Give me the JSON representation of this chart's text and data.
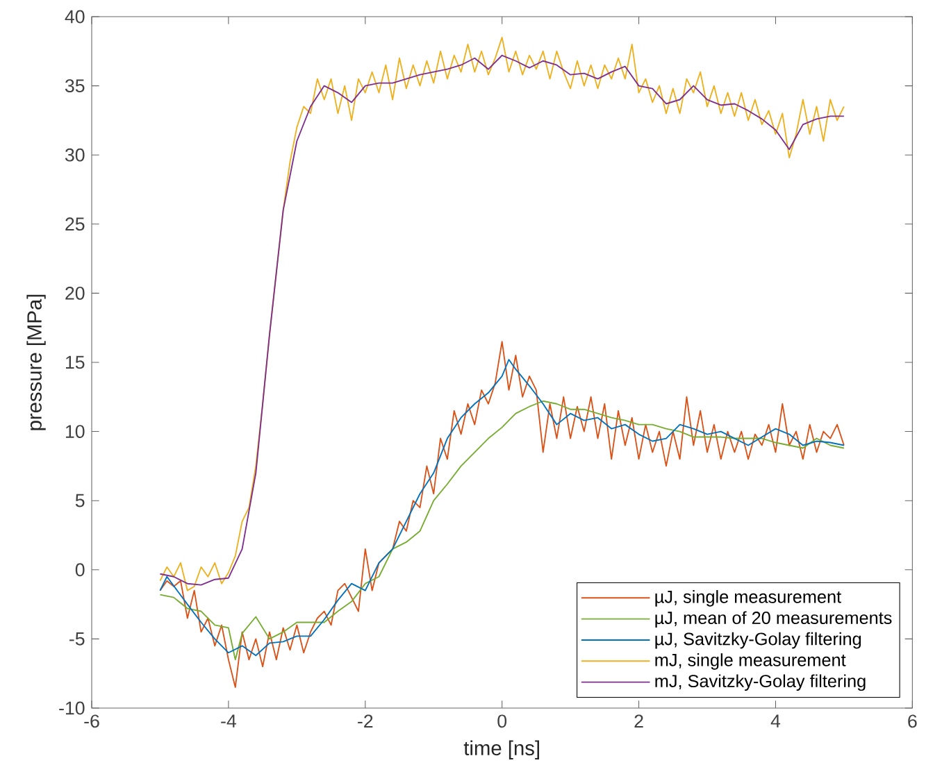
{
  "chart_data": {
    "type": "line",
    "xlabel": "time [ns]",
    "ylabel": "pressure [MPa]",
    "xlim": [
      -6,
      6
    ],
    "ylim": [
      -10,
      40
    ],
    "xticks": [
      -6,
      -4,
      -2,
      0,
      2,
      4,
      6
    ],
    "yticks": [
      -10,
      -5,
      0,
      5,
      10,
      15,
      20,
      25,
      30,
      35,
      40
    ],
    "grid": false,
    "legend": "bottom right",
    "marker": "none",
    "line_style": "solid",
    "series": [
      {
        "name": "µJ, single measurement",
        "color": "#d95319",
        "x": [
          -5.0,
          -4.9,
          -4.8,
          -4.7,
          -4.6,
          -4.5,
          -4.4,
          -4.3,
          -4.2,
          -4.1,
          -4.0,
          -3.9,
          -3.8,
          -3.7,
          -3.6,
          -3.5,
          -3.4,
          -3.3,
          -3.2,
          -3.1,
          -3.0,
          -2.9,
          -2.8,
          -2.7,
          -2.6,
          -2.5,
          -2.4,
          -2.3,
          -2.2,
          -2.1,
          -2.0,
          -1.9,
          -1.8,
          -1.7,
          -1.6,
          -1.5,
          -1.4,
          -1.3,
          -1.2,
          -1.1,
          -1.0,
          -0.9,
          -0.8,
          -0.7,
          -0.6,
          -0.5,
          -0.4,
          -0.3,
          -0.2,
          -0.1,
          0.0,
          0.1,
          0.2,
          0.3,
          0.4,
          0.5,
          0.6,
          0.7,
          0.8,
          0.9,
          1.0,
          1.1,
          1.2,
          1.3,
          1.4,
          1.5,
          1.6,
          1.7,
          1.8,
          1.9,
          2.0,
          2.1,
          2.2,
          2.3,
          2.4,
          2.5,
          2.6,
          2.7,
          2.8,
          2.9,
          3.0,
          3.1,
          3.2,
          3.3,
          3.4,
          3.5,
          3.6,
          3.7,
          3.8,
          3.9,
          4.0,
          4.1,
          4.2,
          4.3,
          4.4,
          4.5,
          4.6,
          4.7,
          4.8,
          4.9,
          5.0
        ],
        "values": [
          -1.5,
          -0.8,
          -1.2,
          -0.8,
          -3.5,
          -1.5,
          -4.5,
          -3.5,
          -5.5,
          -4.0,
          -6.5,
          -8.5,
          -4.5,
          -6.5,
          -5.0,
          -7.0,
          -4.5,
          -6.5,
          -4.2,
          -5.8,
          -4.0,
          -6.0,
          -4.5,
          -3.5,
          -3.0,
          -4.0,
          -1.5,
          -1.0,
          -2.0,
          -3.0,
          1.5,
          -1.5,
          0.5,
          1.0,
          1.5,
          3.5,
          2.8,
          5.0,
          4.5,
          7.5,
          5.5,
          9.5,
          8.0,
          11.5,
          9.8,
          12.0,
          10.5,
          13.0,
          12.0,
          13.5,
          16.5,
          13.0,
          15.5,
          12.5,
          14.0,
          13.0,
          8.5,
          12.0,
          9.5,
          12.5,
          9.5,
          11.8,
          10.0,
          12.5,
          9.5,
          12.0,
          8.0,
          11.5,
          9.0,
          11.0,
          8.0,
          10.5,
          8.5,
          10.0,
          7.5,
          10.0,
          8.0,
          12.5,
          9.0,
          11.5,
          8.5,
          10.5,
          8.0,
          10.0,
          8.5,
          10.0,
          8.0,
          9.8,
          9.0,
          10.5,
          8.5,
          12.0,
          9.0,
          10.0,
          8.0,
          10.5,
          8.5,
          10.0,
          9.5,
          10.5,
          9.0
        ]
      },
      {
        "name": "µJ, mean of 20 measurements",
        "color": "#77ac30",
        "x": [
          -5.0,
          -4.8,
          -4.6,
          -4.4,
          -4.2,
          -4.0,
          -3.9,
          -3.8,
          -3.6,
          -3.4,
          -3.2,
          -3.0,
          -2.8,
          -2.6,
          -2.4,
          -2.2,
          -2.0,
          -1.8,
          -1.6,
          -1.4,
          -1.2,
          -1.0,
          -0.8,
          -0.6,
          -0.4,
          -0.2,
          0.0,
          0.2,
          0.4,
          0.6,
          0.8,
          1.0,
          1.2,
          1.4,
          1.6,
          1.8,
          2.0,
          2.2,
          2.4,
          2.6,
          2.8,
          3.0,
          3.2,
          3.4,
          3.6,
          3.8,
          4.0,
          4.2,
          4.4,
          4.6,
          4.8,
          5.0
        ],
        "values": [
          -1.8,
          -2.0,
          -2.8,
          -3.0,
          -4.0,
          -4.2,
          -6.5,
          -4.6,
          -3.4,
          -5.0,
          -4.5,
          -3.8,
          -3.8,
          -3.8,
          -3.0,
          -2.3,
          -1.0,
          -0.5,
          1.5,
          2.0,
          2.8,
          5.0,
          6.2,
          7.5,
          8.5,
          9.5,
          10.3,
          11.3,
          11.8,
          12.2,
          12.0,
          11.6,
          11.6,
          11.3,
          11.0,
          10.8,
          10.5,
          10.5,
          10.2,
          10.0,
          9.6,
          9.6,
          9.6,
          9.5,
          9.5,
          9.5,
          9.2,
          9.0,
          8.8,
          9.5,
          9.0,
          8.8
        ]
      },
      {
        "name": "µJ, Savitzky-Golay filtering",
        "color": "#0072bd",
        "x": [
          -5.0,
          -4.9,
          -4.6,
          -4.4,
          -4.2,
          -4.0,
          -3.8,
          -3.6,
          -3.4,
          -3.2,
          -3.0,
          -2.8,
          -2.6,
          -2.4,
          -2.2,
          -2.0,
          -1.8,
          -1.6,
          -1.4,
          -1.2,
          -1.0,
          -0.8,
          -0.6,
          -0.4,
          -0.2,
          0.0,
          0.1,
          0.2,
          0.4,
          0.6,
          0.8,
          1.0,
          1.2,
          1.4,
          1.6,
          1.8,
          2.0,
          2.2,
          2.4,
          2.6,
          2.8,
          3.0,
          3.2,
          3.4,
          3.6,
          3.8,
          4.0,
          4.2,
          4.4,
          4.6,
          4.8,
          5.0
        ],
        "values": [
          -1.5,
          -0.5,
          -2.5,
          -3.8,
          -5.0,
          -6.0,
          -5.5,
          -6.2,
          -5.3,
          -5.2,
          -4.8,
          -4.8,
          -3.6,
          -2.2,
          -1.0,
          -1.5,
          0.5,
          1.5,
          3.5,
          5.5,
          7.0,
          9.5,
          11.0,
          12.0,
          12.8,
          14.0,
          15.2,
          14.5,
          13.3,
          12.0,
          10.5,
          11.3,
          10.8,
          11.0,
          10.2,
          10.5,
          9.8,
          9.3,
          9.5,
          10.5,
          10.2,
          9.8,
          10.0,
          9.5,
          9.0,
          9.6,
          10.2,
          9.8,
          9.0,
          9.3,
          9.2,
          9.0
        ]
      },
      {
        "name": "mJ, single measurement",
        "color": "#edb120",
        "x": [
          -5.0,
          -4.9,
          -4.8,
          -4.7,
          -4.6,
          -4.5,
          -4.4,
          -4.3,
          -4.2,
          -4.1,
          -4.0,
          -3.9,
          -3.8,
          -3.7,
          -3.6,
          -3.5,
          -3.4,
          -3.3,
          -3.2,
          -3.1,
          -3.0,
          -2.9,
          -2.8,
          -2.7,
          -2.6,
          -2.5,
          -2.4,
          -2.3,
          -2.2,
          -2.1,
          -2.0,
          -1.9,
          -1.8,
          -1.7,
          -1.6,
          -1.5,
          -1.4,
          -1.3,
          -1.2,
          -1.1,
          -1.0,
          -0.9,
          -0.8,
          -0.7,
          -0.6,
          -0.5,
          -0.4,
          -0.3,
          -0.2,
          -0.1,
          0.0,
          0.1,
          0.2,
          0.3,
          0.4,
          0.5,
          0.6,
          0.7,
          0.8,
          0.9,
          1.0,
          1.1,
          1.2,
          1.3,
          1.4,
          1.5,
          1.6,
          1.7,
          1.8,
          1.9,
          2.0,
          2.1,
          2.2,
          2.3,
          2.4,
          2.5,
          2.6,
          2.7,
          2.8,
          2.9,
          3.0,
          3.1,
          3.2,
          3.3,
          3.4,
          3.5,
          3.6,
          3.7,
          3.8,
          3.9,
          4.0,
          4.1,
          4.2,
          4.3,
          4.4,
          4.5,
          4.6,
          4.7,
          4.8,
          4.9,
          5.0
        ],
        "values": [
          -0.8,
          0.2,
          -0.5,
          0.5,
          -1.5,
          -1.2,
          0.2,
          -0.5,
          0.5,
          -1.0,
          -0.2,
          1.0,
          3.5,
          4.5,
          7.5,
          12,
          17,
          21.5,
          26,
          29.5,
          32.0,
          33.5,
          33.0,
          35.5,
          34.0,
          35.5,
          33.0,
          35.0,
          32.5,
          35.5,
          34.5,
          36.0,
          34.5,
          36.5,
          34.0,
          37.0,
          34.8,
          36.5,
          35.0,
          36.8,
          35.2,
          37.5,
          35.5,
          37.2,
          36.0,
          38.0,
          36.0,
          37.5,
          35.8,
          37.0,
          38.5,
          36.0,
          37.5,
          35.8,
          37.2,
          36.2,
          37.5,
          35.5,
          37.5,
          36.0,
          34.8,
          36.8,
          35.0,
          36.5,
          34.8,
          36.5,
          35.5,
          37.0,
          35.5,
          38.0,
          34.5,
          35.5,
          33.8,
          35.0,
          33.0,
          34.8,
          33.0,
          35.5,
          34.5,
          36.0,
          33.5,
          35.0,
          33.0,
          34.5,
          32.8,
          34.5,
          32.5,
          34.0,
          32.2,
          33.2,
          31.5,
          33.0,
          29.8,
          31.5,
          34.0,
          31.5,
          33.5,
          31.0,
          34.0,
          32.5,
          33.5
        ]
      },
      {
        "name": "mJ, Savitzky-Golay filtering",
        "color": "#7e2f8e",
        "x": [
          -5.0,
          -4.8,
          -4.6,
          -4.4,
          -4.2,
          -4.0,
          -3.8,
          -3.6,
          -3.4,
          -3.2,
          -3.0,
          -2.8,
          -2.6,
          -2.4,
          -2.2,
          -2.0,
          -1.8,
          -1.6,
          -1.4,
          -1.2,
          -1.0,
          -0.8,
          -0.6,
          -0.4,
          -0.2,
          0.0,
          0.2,
          0.4,
          0.6,
          0.8,
          1.0,
          1.2,
          1.4,
          1.6,
          1.8,
          2.0,
          2.2,
          2.4,
          2.6,
          2.8,
          3.0,
          3.2,
          3.4,
          3.6,
          3.8,
          4.0,
          4.2,
          4.4,
          4.6,
          4.8,
          5.0
        ],
        "values": [
          -0.3,
          -0.5,
          -1.0,
          -1.1,
          -0.7,
          -0.6,
          1.5,
          7,
          17,
          26,
          31,
          33.5,
          35,
          34.5,
          33.8,
          35,
          35.2,
          35.2,
          35.5,
          35.8,
          36,
          36.2,
          36.5,
          37,
          36.2,
          37.2,
          36.8,
          36.3,
          36.8,
          36.5,
          35.8,
          35.9,
          35.5,
          36.0,
          36.4,
          35.0,
          34.8,
          33.7,
          34.0,
          35.0,
          34,
          33.6,
          33.7,
          33.2,
          32.6,
          31.8,
          30.4,
          32.2,
          32.6,
          32.8,
          32.8
        ]
      }
    ]
  }
}
